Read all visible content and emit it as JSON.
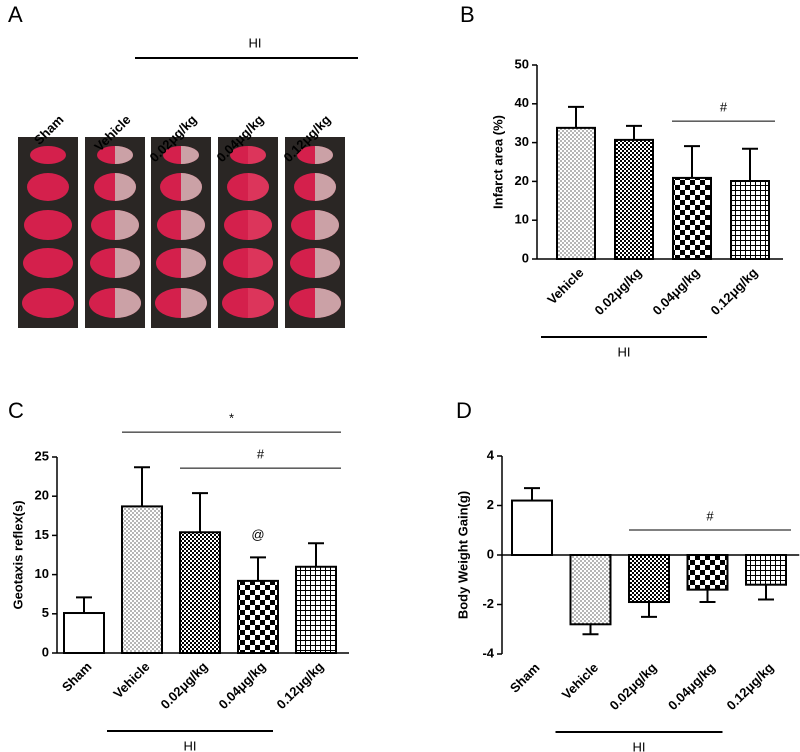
{
  "panel_a": {
    "label": "A",
    "group_label": "HI",
    "columns": [
      "Sham",
      "Vehicle",
      "0.02μg/kg",
      "0.04μg/kg",
      "0.12μg/kg"
    ]
  },
  "chart_data": [
    {
      "type": "bar",
      "panel_label": "B",
      "y_label": "Infarct area (%)",
      "categories": [
        "Vehicle",
        "0.02μg/kg",
        "0.04μg/kg",
        "0.12μg/kg"
      ],
      "values": [
        33.8,
        30.7,
        20.9,
        20.1
      ],
      "errors": [
        5.4,
        3.6,
        8.2,
        8.3
      ],
      "patterns": [
        "dots",
        "checker-fine",
        "checker",
        "grid"
      ],
      "ylim": [
        0,
        50
      ],
      "yticks": [
        0,
        10,
        20,
        30,
        40,
        50
      ],
      "group": {
        "label": "HI",
        "from": 0,
        "to": 2
      },
      "annotations": [
        {
          "text": "#",
          "from": 2,
          "to": 3
        }
      ]
    },
    {
      "type": "bar",
      "panel_label": "C",
      "y_label": "Geotaxis reflex(s)",
      "categories": [
        "Sham",
        "Vehicle",
        "0.02μg/kg",
        "0.04μg/kg",
        "0.12μg/kg"
      ],
      "values": [
        5.1,
        18.7,
        15.4,
        9.2,
        11
      ],
      "errors": [
        2,
        5,
        5,
        3,
        3
      ],
      "patterns": [
        "plain",
        "dots",
        "checker-fine",
        "checker",
        "grid"
      ],
      "ylim": [
        0,
        25
      ],
      "yticks": [
        0,
        5,
        10,
        15,
        20,
        25
      ],
      "group": {
        "label": "HI",
        "from": 1,
        "to": 3
      },
      "annotations": [
        {
          "text": "*",
          "from": 1,
          "to": 4
        },
        {
          "text": "#",
          "from": 2,
          "to": 4
        },
        {
          "text": "@",
          "from": 3,
          "to": 3
        }
      ]
    },
    {
      "type": "bar",
      "panel_label": "D",
      "y_label": "Body Weight Gain(g)",
      "categories": [
        "Sham",
        "Vehicle",
        "0.02μg/kg",
        "0.04μg/kg",
        "0.12μg/kg"
      ],
      "values": [
        2.2,
        -2.8,
        -1.9,
        -1.4,
        -1.2
      ],
      "errors": [
        0.5,
        0.4,
        0.6,
        0.5,
        0.6
      ],
      "patterns": [
        "plain",
        "dots",
        "checker-fine",
        "checker",
        "grid"
      ],
      "ylim": [
        -4,
        4
      ],
      "yticks": [
        -4,
        -2,
        0,
        2,
        4
      ],
      "group": {
        "label": "HI",
        "from": 1,
        "to": 3
      },
      "annotations": [
        {
          "text": "#",
          "from": 2,
          "to": 4
        }
      ]
    }
  ]
}
